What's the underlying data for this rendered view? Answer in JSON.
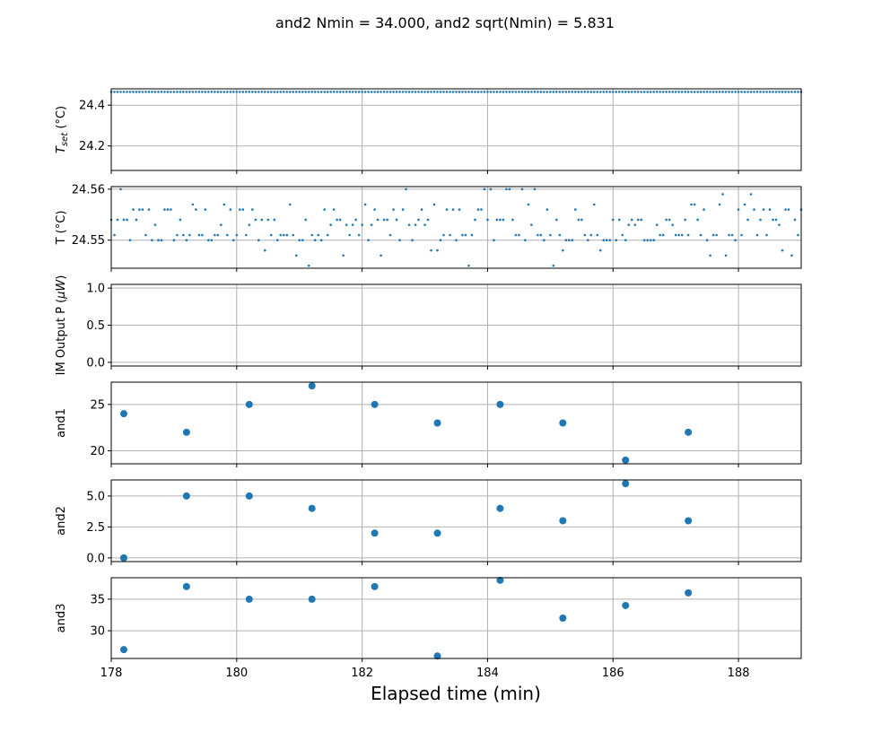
{
  "figure": {
    "title": "and2 Nmin = 34.000, and2 sqrt(Nmin) = 5.831",
    "xlabel": "Elapsed time (min)",
    "marker_color": "#1f77b4"
  },
  "chart_data": [
    {
      "type": "scatter",
      "id": "tset",
      "ylabel": "T_set (°C)",
      "ylabel_main": "T",
      "ylabel_sub": "set",
      "ylabel_unit": " (°C)",
      "xlim": [
        178,
        189
      ],
      "ylim": [
        24.08,
        24.48
      ],
      "xticks": [
        180,
        182,
        184,
        186,
        188
      ],
      "yticks": [
        24.2,
        24.4
      ],
      "ytick_labels": [
        "24.2",
        "24.4"
      ],
      "grid": true,
      "marker": "small",
      "series": [
        {
          "x_start": 178.0,
          "x_end": 189.0,
          "x_step": 0.05,
          "values": [
            24.465
          ],
          "note_value_constant": true
        }
      ]
    },
    {
      "type": "scatter",
      "id": "temp",
      "ylabel": "T (°C)",
      "xlim": [
        178,
        189
      ],
      "ylim": [
        24.5445,
        24.5605
      ],
      "xticks": [
        180,
        182,
        184,
        186,
        188
      ],
      "yticks": [
        24.55,
        24.56
      ],
      "ytick_labels": [
        "24.55",
        "24.56"
      ],
      "ytick_top_label": "24.56",
      "grid": true,
      "marker": "small",
      "levels": [
        24.545,
        24.547,
        24.548,
        24.55,
        24.551,
        24.553,
        24.554,
        24.556,
        24.557,
        24.559,
        24.56
      ]
    },
    {
      "type": "scatter",
      "id": "power",
      "ylabel": "IM Output P (µW)",
      "ylabel_main": "IM Output P (",
      "ylabel_mu": "µW",
      "ylabel_end": ")",
      "xlim": [
        178,
        189
      ],
      "ylim": [
        -0.05,
        1.05
      ],
      "xticks": [
        180,
        182,
        184,
        186,
        188
      ],
      "yticks": [
        0.0,
        0.5,
        1.0
      ],
      "ytick_labels": [
        "0.0",
        "0.5",
        "1.0"
      ],
      "grid": true,
      "series": []
    },
    {
      "type": "scatter",
      "id": "and1",
      "ylabel": "and1",
      "xlim": [
        178,
        189
      ],
      "ylim": [
        18.6,
        27.4
      ],
      "xticks": [
        180,
        182,
        184,
        186,
        188
      ],
      "yticks": [
        20,
        25
      ],
      "ytick_labels": [
        "20",
        "25"
      ],
      "grid": true,
      "marker": "large",
      "series": [
        {
          "x": [
            178.2,
            179.2,
            180.2,
            181.2,
            182.2,
            183.2,
            184.2,
            185.2,
            186.2,
            187.2
          ],
          "values": [
            24,
            22,
            25,
            27,
            25,
            23,
            25,
            23,
            19,
            22
          ]
        }
      ]
    },
    {
      "type": "scatter",
      "id": "and2",
      "ylabel": "and2",
      "xlim": [
        178,
        189
      ],
      "ylim": [
        -0.3,
        6.3
      ],
      "xticks": [
        180,
        182,
        184,
        186,
        188
      ],
      "yticks": [
        0.0,
        2.5,
        5.0
      ],
      "ytick_labels": [
        "0.0",
        "2.5",
        "5.0"
      ],
      "grid": true,
      "marker": "large",
      "series": [
        {
          "x": [
            178.2,
            179.2,
            180.2,
            181.2,
            182.2,
            183.2,
            184.2,
            185.2,
            186.2,
            187.2
          ],
          "values": [
            0,
            5,
            5,
            4,
            2,
            2,
            4,
            3,
            6,
            3
          ]
        }
      ]
    },
    {
      "type": "scatter",
      "id": "and3",
      "ylabel": "and3",
      "xlim": [
        178,
        189
      ],
      "ylim": [
        25.6,
        38.4
      ],
      "xticks": [
        180,
        182,
        184,
        186,
        188
      ],
      "xtick_labels": [
        "178",
        "180",
        "182",
        "184",
        "186",
        "188"
      ],
      "xtick_values": [
        178,
        180,
        182,
        184,
        186,
        188
      ],
      "yticks": [
        30,
        35
      ],
      "ytick_labels": [
        "30",
        "35"
      ],
      "grid": true,
      "marker": "large",
      "series": [
        {
          "x": [
            178.2,
            179.2,
            180.2,
            181.2,
            182.2,
            183.2,
            184.2,
            185.2,
            186.2,
            187.2
          ],
          "values": [
            27,
            37,
            35,
            35,
            37,
            26,
            38,
            32,
            34,
            36
          ]
        }
      ]
    }
  ]
}
